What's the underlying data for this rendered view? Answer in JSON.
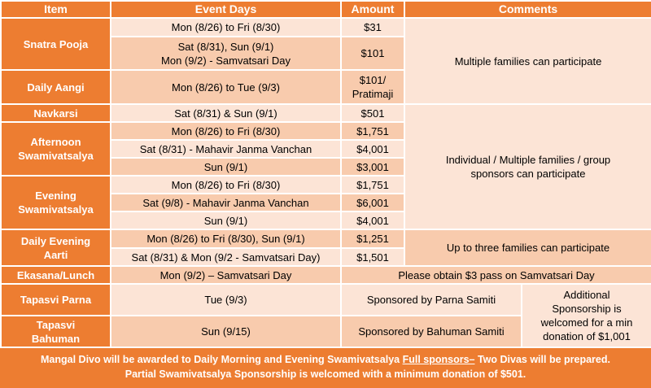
{
  "table": {
    "header": [
      "Item",
      "Event Days",
      "Amount",
      "Comments"
    ],
    "rows": [
      [
        "Snatra Pooja",
        "Mon (8/26) to Fri (8/30)",
        "$31",
        "Multiple families can participate"
      ],
      [
        "Sat (8/31), Sun (9/1)\nMon (9/2) - Samvatsari Day",
        "$101"
      ],
      [
        "Daily Aangi",
        "Mon (8/26) to Tue (9/3)",
        "$101/\nPratimaji"
      ],
      [
        "Navkarsi",
        "Sat (8/31) & Sun (9/1)",
        "$501",
        "Individual / Multiple families / group\nsponsors can participate"
      ],
      [
        "Afternoon\nSwamivatsalya",
        "Mon (8/26) to Fri (8/30)",
        "$1,751"
      ],
      [
        "Sat (8/31) - Mahavir Janma Vanchan",
        "$4,001"
      ],
      [
        "Sun (9/1)",
        "$3,001"
      ],
      [
        "Evening\nSwamivatsalya",
        "Mon (8/26) to Fri (8/30)",
        "$1,751"
      ],
      [
        "Sat (9/8) - Mahavir Janma Vanchan",
        "$6,001"
      ],
      [
        "Sun (9/1)",
        "$4,001"
      ],
      [
        "Daily Evening\nAarti",
        "Mon (8/26) to Fri (8/30), Sun (9/1)",
        "$1,251",
        "Up to three families can participate"
      ],
      [
        "Sat (8/31) & Mon (9/2 - Samvatsari Day)",
        "$1,501"
      ],
      [
        "Ekasana/Lunch",
        "Mon (9/2) – Samvatsari Day",
        "Please obtain $3 pass on Samvatsari Day"
      ],
      [
        "Tapasvi Parna",
        "Tue (9/3)",
        "Sponsored by  Parna Samiti",
        "Additional\nSponsorship is\nwelcomed for a min\ndonation of $1,001"
      ],
      [
        "Tapasvi\nBahuman",
        "Sun (9/15)",
        "Sponsored by  Bahuman Samiti"
      ]
    ]
  },
  "footer": {
    "line1_before": "Mangal Divo will be awarded to Daily Morning and Evening Swamivatsalya ",
    "line1_underlined": "Full sponsors–",
    "line1_after": " Two Divas will be prepared.",
    "line2": "Partial Swamivatsalya Sponsorship is welcomed with a minimum donation of $501."
  }
}
